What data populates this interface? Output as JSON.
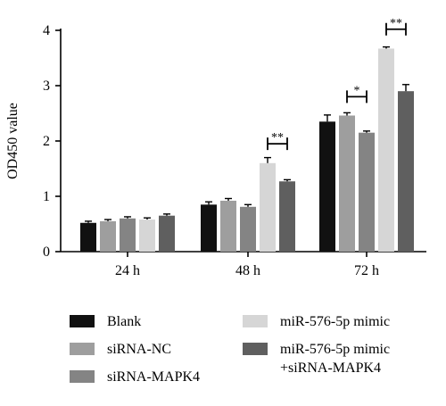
{
  "chart_data": {
    "type": "bar",
    "title": "",
    "xlabel": "",
    "ylabel": "OD450 value",
    "ylim": [
      0,
      4
    ],
    "yticks": [
      "0",
      "1",
      "2",
      "3",
      "4"
    ],
    "categories": [
      "24 h",
      "48 h",
      "72 h"
    ],
    "grid": false,
    "legend_position": "bottom",
    "series": [
      {
        "name": "Blank",
        "color": "#111111",
        "values": [
          0.52,
          0.85,
          2.35
        ],
        "errors": [
          0.03,
          0.05,
          0.12
        ]
      },
      {
        "name": "siRNA-NC",
        "color": "#9e9e9e",
        "values": [
          0.55,
          0.92,
          2.46
        ],
        "errors": [
          0.03,
          0.04,
          0.05
        ]
      },
      {
        "name": "siRNA-MAPK4",
        "color": "#848484",
        "values": [
          0.6,
          0.81,
          2.15
        ],
        "errors": [
          0.03,
          0.04,
          0.03
        ]
      },
      {
        "name": "miR-576-5p mimic",
        "color": "#d6d6d6",
        "values": [
          0.58,
          1.6,
          3.67
        ],
        "errors": [
          0.03,
          0.1,
          0.03
        ]
      },
      {
        "name": "miR-576-5p mimic\n+siRNA-MAPK4",
        "color": "#5f5f5f",
        "values": [
          0.65,
          1.27,
          2.9
        ],
        "errors": [
          0.03,
          0.03,
          0.12
        ]
      }
    ],
    "annotations": [
      {
        "text": "**",
        "category_index": 1,
        "from_series": 3,
        "to_series": 4,
        "y": 1.95
      },
      {
        "text": "*",
        "category_index": 2,
        "from_series": 1,
        "to_series": 2,
        "y": 2.8
      },
      {
        "text": "**",
        "category_index": 2,
        "from_series": 3,
        "to_series": 4,
        "y": 4.02
      }
    ]
  }
}
